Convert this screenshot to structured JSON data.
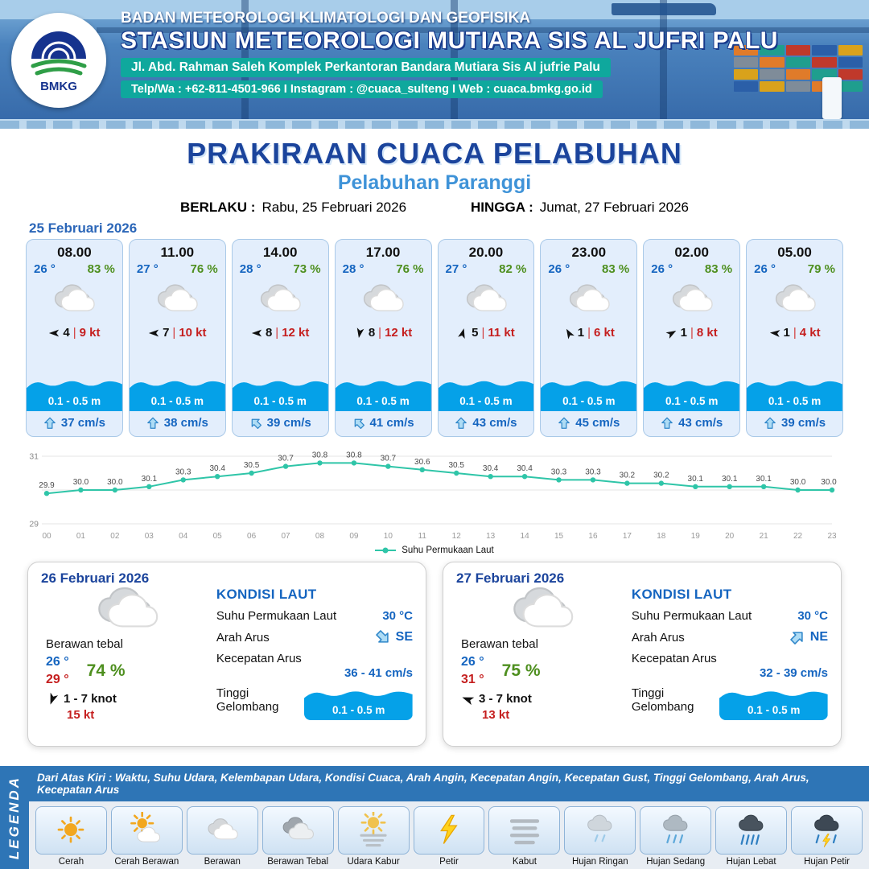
{
  "header": {
    "logo_text": "BMKG",
    "agency": "BADAN METEOROLOGI KLIMATOLOGI DAN GEOFISIKA",
    "station": "STASIUN METEOROLOGI MUTIARA SIS AL JUFRI PALU",
    "address": "Jl. Abd. Rahman Saleh Komplek Perkantoran Bandara Mutiara Sis Al jufrie Palu",
    "contact": "Telp/Wa : +62-811-4501-966  I  Instagram : @cuaca_sulteng  I  Web : cuaca.bmkg.go.id"
  },
  "title": {
    "main": "PRAKIRAAN CUACA PELABUHAN",
    "port": "Pelabuhan Paranggi",
    "berlaku_label": "BERLAKU :",
    "berlaku_value": "Rabu, 25 Februari 2026",
    "hingga_label": "HINGGA :",
    "hingga_value": "Jumat, 27 Februari 2026"
  },
  "forecast": {
    "date": "25 Februari 2026",
    "cards": [
      {
        "time": "08.00",
        "temp": "26 °",
        "humidity": "83 %",
        "weather_icon": "berawan",
        "wind_dir_deg": 180,
        "wind_val": "4",
        "wind_speed": "9 kt",
        "wave": "0.1 - 0.5 m",
        "current_dir_deg": 0,
        "current": "37 cm/s"
      },
      {
        "time": "11.00",
        "temp": "27 °",
        "humidity": "76 %",
        "weather_icon": "berawan",
        "wind_dir_deg": 180,
        "wind_val": "7",
        "wind_speed": "10 kt",
        "wave": "0.1 - 0.5 m",
        "current_dir_deg": 0,
        "current": "38 cm/s"
      },
      {
        "time": "14.00",
        "temp": "28 °",
        "humidity": "73 %",
        "weather_icon": "berawan",
        "wind_dir_deg": 180,
        "wind_val": "8",
        "wind_speed": "12 kt",
        "wave": "0.1 - 0.5 m",
        "current_dir_deg": -45,
        "current": "39 cm/s"
      },
      {
        "time": "17.00",
        "temp": "28 °",
        "humidity": "76 %",
        "weather_icon": "berawan",
        "wind_dir_deg": 100,
        "wind_val": "8",
        "wind_speed": "12 kt",
        "wave": "0.1 - 0.5 m",
        "current_dir_deg": -45,
        "current": "41 cm/s"
      },
      {
        "time": "20.00",
        "temp": "27 °",
        "humidity": "82 %",
        "weather_icon": "berawan",
        "wind_dir_deg": -75,
        "wind_val": "5",
        "wind_speed": "11 kt",
        "wave": "0.1 - 0.5 m",
        "current_dir_deg": 0,
        "current": "43 cm/s"
      },
      {
        "time": "23.00",
        "temp": "26 °",
        "humidity": "83 %",
        "weather_icon": "berawan",
        "wind_dir_deg": -120,
        "wind_val": "1",
        "wind_speed": "6 kt",
        "wave": "0.1 - 0.5 m",
        "current_dir_deg": 0,
        "current": "45 cm/s"
      },
      {
        "time": "02.00",
        "temp": "26 °",
        "humidity": "83 %",
        "weather_icon": "berawan",
        "wind_dir_deg": -30,
        "wind_val": "1",
        "wind_speed": "8 kt",
        "wave": "0.1 - 0.5 m",
        "current_dir_deg": 0,
        "current": "43 cm/s"
      },
      {
        "time": "05.00",
        "temp": "26 °",
        "humidity": "79 %",
        "weather_icon": "berawan",
        "wind_dir_deg": 185,
        "wind_val": "1",
        "wind_speed": "4 kt",
        "wave": "0.1 - 0.5 m",
        "current_dir_deg": 0,
        "current": "39 cm/s"
      }
    ]
  },
  "chart_data": {
    "type": "line",
    "series_name": "Suhu Permukaan Laut",
    "x": [
      "00",
      "01",
      "02",
      "03",
      "04",
      "05",
      "06",
      "07",
      "08",
      "09",
      "10",
      "11",
      "12",
      "13",
      "14",
      "15",
      "16",
      "17",
      "18",
      "19",
      "20",
      "21",
      "22",
      "23"
    ],
    "values": [
      29.9,
      30.0,
      30.0,
      30.1,
      30.3,
      30.4,
      30.5,
      30.7,
      30.8,
      30.8,
      30.7,
      30.6,
      30.5,
      30.4,
      30.4,
      30.3,
      30.3,
      30.2,
      30.2,
      30.1,
      30.1,
      30.1,
      30.0,
      30.0
    ],
    "ylim": [
      29,
      31
    ],
    "yticks_labeled": [
      31,
      29
    ],
    "gridlines": [
      29,
      30,
      31
    ],
    "line_color": "#2fc5a8",
    "legend_position": "bottom"
  },
  "daily": [
    {
      "date": "26 Februari 2026",
      "condition": "Berawan tebal",
      "weather_icon": "berawan-tebal",
      "temp_min": "26 °",
      "temp_max": "29 °",
      "humidity": "74 %",
      "wind_dir_deg": 110,
      "wind_range": "1 - 7 knot",
      "gust": "15 kt",
      "sea": {
        "title": "KONDISI LAUT",
        "sst_label": "Suhu Permukaan Laut",
        "sst": "30 °C",
        "current_dir_label": "Arah Arus",
        "current_dir": "SE",
        "current_dir_deg": 135,
        "current_speed_label": "Kecepatan Arus",
        "current_speed": "36 - 41 cm/s",
        "wave_label": "Tinggi Gelombang",
        "wave": "0.1 - 0.5 m"
      }
    },
    {
      "date": "27 Februari 2026",
      "condition": "Berawan tebal",
      "weather_icon": "berawan-tebal",
      "temp_min": "26 °",
      "temp_max": "31 °",
      "humidity": "75 %",
      "wind_dir_deg": -160,
      "wind_range": "3 - 7 knot",
      "gust": "13 kt",
      "sea": {
        "title": "KONDISI LAUT",
        "sst_label": "Suhu Permukaan Laut",
        "sst": "30 °C",
        "current_dir_label": "Arah Arus",
        "current_dir": "NE",
        "current_dir_deg": 45,
        "current_speed_label": "Kecepatan Arus",
        "current_speed": "32 - 39 cm/s",
        "wave_label": "Tinggi Gelombang",
        "wave": "0.1 - 0.5 m"
      }
    }
  ],
  "legend": {
    "note": "Dari Atas Kiri : Waktu, Suhu Udara, Kelembapan Udara, Kondisi Cuaca, Arah Angin, Kecepatan Angin, Kecepatan Gust, Tinggi Gelombang, Arah Arus, Kecepatan Arus",
    "legenda_label": "LEGENDA",
    "items": [
      {
        "label": "Cerah",
        "icon": "cerah"
      },
      {
        "label": "Cerah Berawan",
        "icon": "cerah-berawan"
      },
      {
        "label": "Berawan",
        "icon": "berawan"
      },
      {
        "label": "Berawan Tebal",
        "icon": "berawan-tebal"
      },
      {
        "label": "Udara Kabur",
        "icon": "udara-kabur"
      },
      {
        "label": "Petir",
        "icon": "petir"
      },
      {
        "label": "Kabut",
        "icon": "kabut"
      },
      {
        "label": "Hujan Ringan",
        "icon": "hujan-ringan"
      },
      {
        "label": "Hujan Sedang",
        "icon": "hujan-sedang"
      },
      {
        "label": "Hujan Lebat",
        "icon": "hujan-lebat"
      },
      {
        "label": "Hujan Petir",
        "icon": "hujan-petir"
      }
    ]
  },
  "colors": {
    "header_blue": "#3a6fb0",
    "teal_bar": "#0fa89d",
    "title_blue": "#1b449c",
    "port_blue": "#3f93d8",
    "card_bg": "#e3eefc",
    "card_border": "#a9c9e8",
    "wave_blue": "#05a1e8",
    "temp_blue": "#1565c0",
    "humidity_green": "#4e8f1f",
    "speed_red": "#c51f1f",
    "chart_teal": "#2fc5a8",
    "legend_bar_blue": "#2e75b6"
  }
}
